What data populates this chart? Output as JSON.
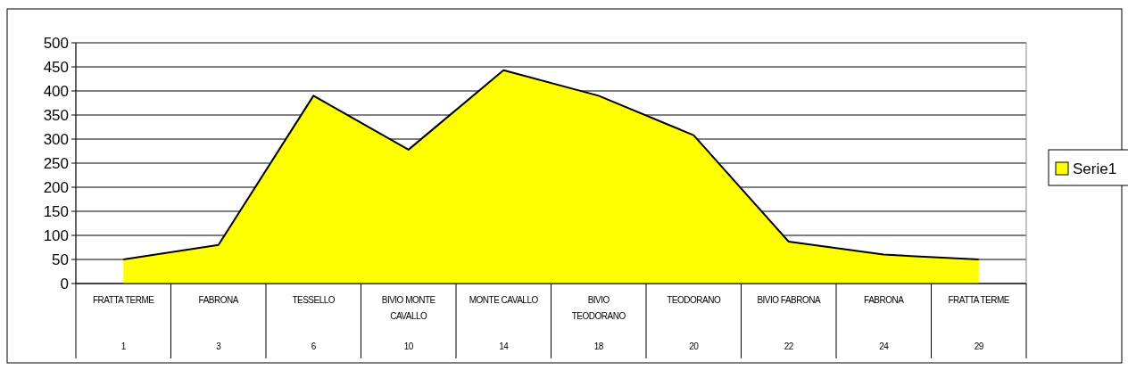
{
  "chart_data": {
    "type": "area",
    "categories": [
      "FRATTA TERME\n1",
      "FABRONA\n3",
      "TESSELLO\n6",
      "BIVIO MONTE CAVALLO\n10",
      "MONTE CAVALLO\n14",
      "BIVIO TEODORANO\n18",
      "TEODORANO\n20",
      "BIVIO FABRONA\n22",
      "FABRONA\n24",
      "FRATTA TERME\n29"
    ],
    "series": [
      {
        "name": "Serie1",
        "color": "#ffff00",
        "values": [
          50,
          80,
          390,
          278,
          443,
          390,
          308,
          87,
          60,
          50
        ]
      }
    ],
    "ylim": [
      0,
      500
    ],
    "yticks": [
      0,
      50,
      100,
      150,
      200,
      250,
      300,
      350,
      400,
      450,
      500
    ],
    "grid": "y",
    "legend": "right"
  }
}
